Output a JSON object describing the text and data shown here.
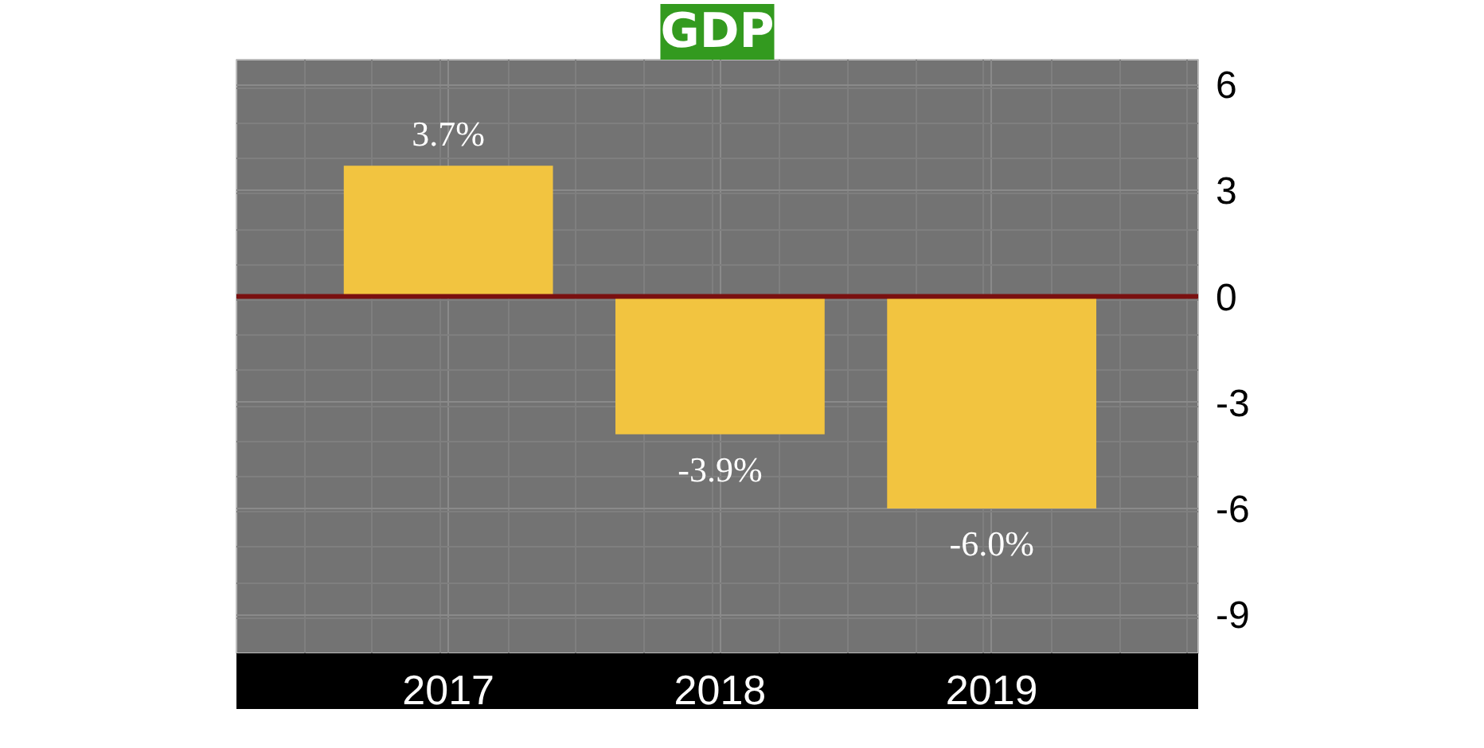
{
  "chart_data": {
    "type": "bar",
    "title": "GDP",
    "categories": [
      "2017",
      "2018",
      "2019"
    ],
    "values": [
      3.7,
      -3.9,
      -6.0
    ],
    "value_labels": [
      "3.7%",
      "-3.9%",
      "-6.0%"
    ],
    "color": "#f2c440",
    "ylim": [
      -10.1,
      6.7
    ],
    "yticks": [
      6,
      3,
      0,
      -3,
      -6,
      -9
    ],
    "grid": true,
    "ref_lines": [
      {
        "axis": "y",
        "value": 0,
        "color": "#7a1010"
      }
    ]
  }
}
